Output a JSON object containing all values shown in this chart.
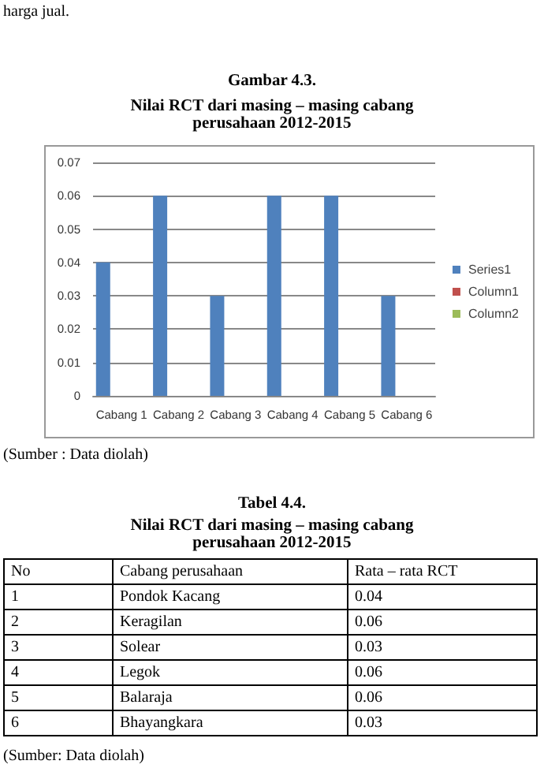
{
  "chart_data": {
    "type": "bar",
    "title": "Nilai RCT dari masing – masing cabang perusahaan 2012-2015",
    "categories": [
      "Cabang 1",
      "Cabang 2",
      "Cabang 3",
      "Cabang 4",
      "Cabang 5",
      "Cabang 6"
    ],
    "series": [
      {
        "name": "Series1",
        "color": "#4f81bd",
        "values": [
          0.04,
          0.06,
          0.03,
          0.06,
          0.06,
          0.03
        ]
      },
      {
        "name": "Column1",
        "color": "#c0504d",
        "values": [
          null,
          null,
          null,
          null,
          null,
          null
        ]
      },
      {
        "name": "Column2",
        "color": "#9bbb59",
        "values": [
          null,
          null,
          null,
          null,
          null,
          null
        ]
      }
    ],
    "ylim": [
      0,
      0.07
    ],
    "yticks": [
      0,
      0.01,
      0.02,
      0.03,
      0.04,
      0.05,
      0.06,
      0.07
    ],
    "grid": "y",
    "legend": "right",
    "annotations": [
      "harga jual.",
      "Gambar 4.3.",
      "(Sumber : Data diolah)",
      "Tabel 4.4.",
      "Nilai RCT dari masing – masing cabang perusahaan 2012-2015",
      "No",
      "Cabang perusahaan",
      "Rata – rata RCT",
      "1",
      "Pondok Kacang",
      "0.04",
      "2",
      "Keragilan",
      "0.06",
      "3",
      "Solear",
      "0.03",
      "4",
      "Legok",
      "0.06",
      "5",
      "Balaraja",
      "0.06",
      "6",
      "Bhayangkara",
      "0.03",
      "(Sumber: Data diolah)"
    ]
  }
}
